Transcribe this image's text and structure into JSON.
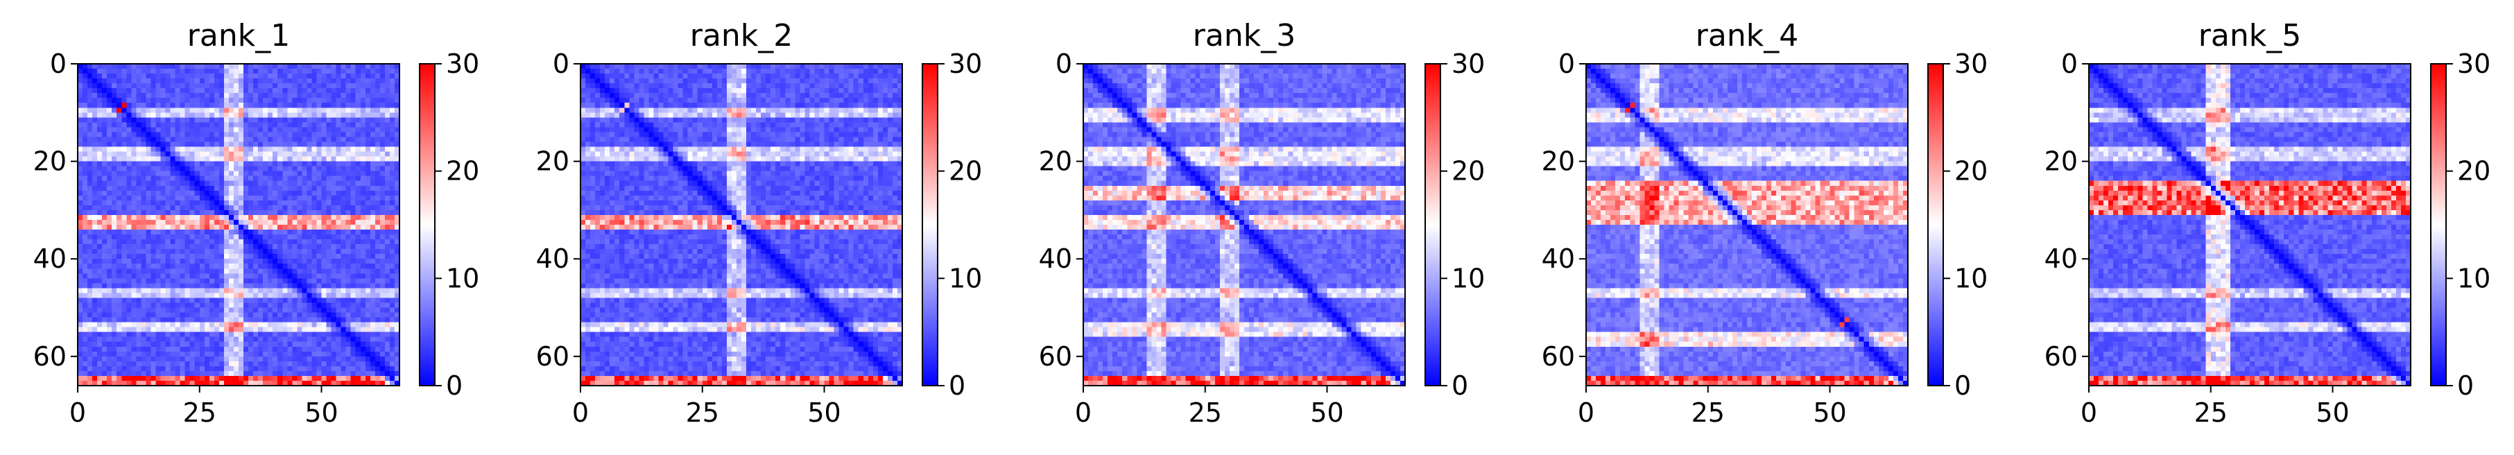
{
  "chart_data": [
    {
      "type": "heatmap",
      "title": "rank_1",
      "size": 66,
      "xlim": [
        0,
        66
      ],
      "ylim": [
        66,
        0
      ],
      "xticks": [
        0,
        25,
        50
      ],
      "yticks": [
        0,
        20,
        40,
        60
      ],
      "colorbar": {
        "range": [
          0,
          30
        ],
        "ticks": [
          0,
          10,
          20,
          30
        ],
        "colors": [
          "#0000ff",
          "#ffffff",
          "#ff0000"
        ]
      },
      "pattern": {
        "base": 3.5,
        "hot_rows": [
          [
            31,
            33,
            16
          ]
        ],
        "edge_rows": [
          [
            64,
            65,
            22
          ]
        ],
        "light_rows": [
          [
            9,
            10,
            8
          ],
          [
            17,
            19,
            9
          ],
          [
            46,
            47,
            8
          ],
          [
            53,
            54,
            10
          ]
        ],
        "light_cols": [
          [
            30,
            33,
            9
          ]
        ],
        "bright_dots": [
          [
            8,
            9,
            30
          ]
        ]
      }
    },
    {
      "type": "heatmap",
      "title": "rank_2",
      "size": 66,
      "xlim": [
        0,
        66
      ],
      "ylim": [
        66,
        0
      ],
      "xticks": [
        0,
        25,
        50
      ],
      "yticks": [
        0,
        20,
        40,
        60
      ],
      "colorbar": {
        "range": [
          0,
          30
        ],
        "ticks": [
          0,
          10,
          20,
          30
        ],
        "colors": [
          "#0000ff",
          "#ffffff",
          "#ff0000"
        ]
      },
      "pattern": {
        "base": 3.5,
        "hot_rows": [
          [
            31,
            33,
            16
          ]
        ],
        "edge_rows": [
          [
            64,
            65,
            22
          ]
        ],
        "light_rows": [
          [
            9,
            10,
            8
          ],
          [
            17,
            19,
            9
          ],
          [
            46,
            47,
            8
          ],
          [
            53,
            54,
            10
          ]
        ],
        "light_cols": [
          [
            30,
            33,
            9
          ]
        ],
        "bright_dots": [
          [
            8,
            9,
            18
          ]
        ]
      }
    },
    {
      "type": "heatmap",
      "title": "rank_3",
      "size": 66,
      "xlim": [
        0,
        66
      ],
      "ylim": [
        66,
        0
      ],
      "xticks": [
        0,
        25,
        50
      ],
      "yticks": [
        0,
        20,
        40,
        60
      ],
      "colorbar": {
        "range": [
          0,
          30
        ],
        "ticks": [
          0,
          10,
          20,
          30
        ],
        "colors": [
          "#0000ff",
          "#ffffff",
          "#ff0000"
        ]
      },
      "pattern": {
        "base": 4.5,
        "hot_rows": [
          [
            25,
            27,
            12
          ],
          [
            31,
            33,
            11
          ]
        ],
        "edge_rows": [
          [
            64,
            65,
            21
          ]
        ],
        "light_rows": [
          [
            9,
            11,
            9
          ],
          [
            17,
            20,
            9
          ],
          [
            46,
            47,
            8
          ],
          [
            53,
            55,
            10
          ]
        ],
        "light_cols": [
          [
            13,
            16,
            8
          ],
          [
            28,
            31,
            8
          ]
        ],
        "bright_dots": []
      }
    },
    {
      "type": "heatmap",
      "title": "rank_4",
      "size": 66,
      "xlim": [
        0,
        66
      ],
      "ylim": [
        66,
        0
      ],
      "xticks": [
        0,
        25,
        50
      ],
      "yticks": [
        0,
        20,
        40,
        60
      ],
      "colorbar": {
        "range": [
          0,
          30
        ],
        "ticks": [
          0,
          10,
          20,
          30
        ],
        "colors": [
          "#0000ff",
          "#ffffff",
          "#ff0000"
        ]
      },
      "pattern": {
        "base": 5,
        "hot_rows": [
          [
            24,
            32,
            14
          ]
        ],
        "edge_rows": [
          [
            64,
            65,
            20
          ]
        ],
        "light_rows": [
          [
            9,
            11,
            9
          ],
          [
            17,
            20,
            8
          ],
          [
            46,
            47,
            9
          ],
          [
            55,
            57,
            11
          ]
        ],
        "light_cols": [
          [
            11,
            14,
            8
          ]
        ],
        "bright_dots": [
          [
            8,
            9,
            28
          ],
          [
            52,
            53,
            26
          ]
        ]
      }
    },
    {
      "type": "heatmap",
      "title": "rank_5",
      "size": 66,
      "xlim": [
        0,
        66
      ],
      "ylim": [
        66,
        0
      ],
      "xticks": [
        0,
        25,
        50
      ],
      "yticks": [
        0,
        20,
        40,
        60
      ],
      "colorbar": {
        "range": [
          0,
          30
        ],
        "ticks": [
          0,
          10,
          20,
          30
        ],
        "colors": [
          "#0000ff",
          "#ffffff",
          "#ff0000"
        ]
      },
      "pattern": {
        "base": 4,
        "hot_rows": [
          [
            24,
            30,
            19
          ]
        ],
        "edge_rows": [
          [
            64,
            65,
            21
          ]
        ],
        "light_rows": [
          [
            9,
            11,
            8
          ],
          [
            17,
            19,
            8
          ],
          [
            46,
            47,
            8
          ],
          [
            53,
            54,
            9
          ]
        ],
        "light_cols": [
          [
            24,
            28,
            11
          ]
        ],
        "bright_dots": []
      }
    }
  ]
}
